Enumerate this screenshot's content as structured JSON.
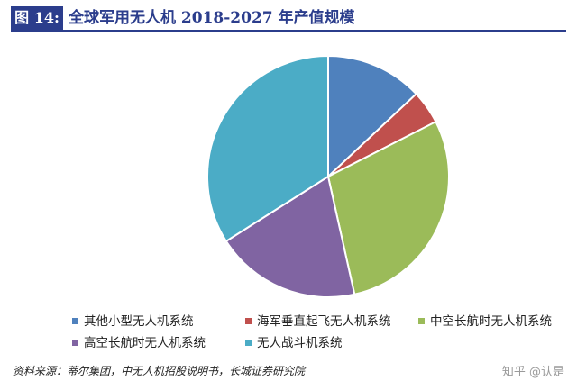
{
  "header": {
    "label": "图 14:",
    "title": "全球军用无人机 2018-2027 年产值规模"
  },
  "chart_data": {
    "type": "pie",
    "title": "",
    "slices": [
      {
        "name": "其他小型无人机系统",
        "value": 13.0,
        "color": "#4f81bd"
      },
      {
        "name": "海军垂直起飞无人机系统",
        "value": 4.5,
        "color": "#c0504d"
      },
      {
        "name": "中空长航时无人机系统",
        "value": 29.0,
        "color": "#9bbb59"
      },
      {
        "name": "高空长航时无人机系统",
        "value": 19.5,
        "color": "#8064a2"
      },
      {
        "name": "无人战斗机系统",
        "value": 34.0,
        "color": "#4bacc6"
      }
    ],
    "start": "12 o'clock",
    "direction": "clockwise",
    "legend_position": "bottom"
  },
  "source": "资料来源：蒂尔集团，中无人机招股说明书，长城证券研究院",
  "watermark": "知乎 @认是"
}
